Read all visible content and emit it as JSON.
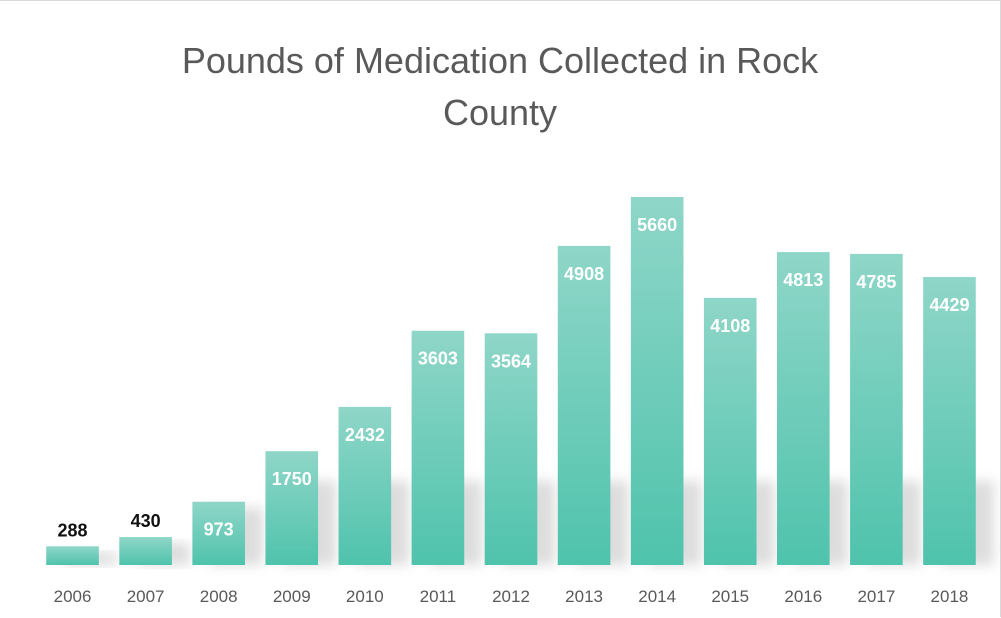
{
  "chart_data": {
    "type": "bar",
    "title": "Pounds of Medication Collected in Rock County",
    "xlabel": "",
    "ylabel": "",
    "categories": [
      "2006",
      "2007",
      "2008",
      "2009",
      "2010",
      "2011",
      "2012",
      "2013",
      "2014",
      "2015",
      "2016",
      "2017",
      "2018"
    ],
    "values": [
      288,
      430,
      973,
      1750,
      2432,
      3603,
      3564,
      4908,
      5660,
      4108,
      4813,
      4785,
      4429
    ],
    "data_labels": [
      "288",
      "430",
      "973",
      "1750",
      "2432",
      "3603",
      "3564",
      "4908",
      "5660",
      "4108",
      "4813",
      "4785",
      "4429"
    ],
    "ylim": [
      0,
      5800
    ],
    "grid": false,
    "legend": "none",
    "bar_color_top": "#8fd6c8",
    "bar_color_bottom": "#4fc3ac",
    "label_color_inside": "#ffffff",
    "label_color_outside": "#111111"
  }
}
